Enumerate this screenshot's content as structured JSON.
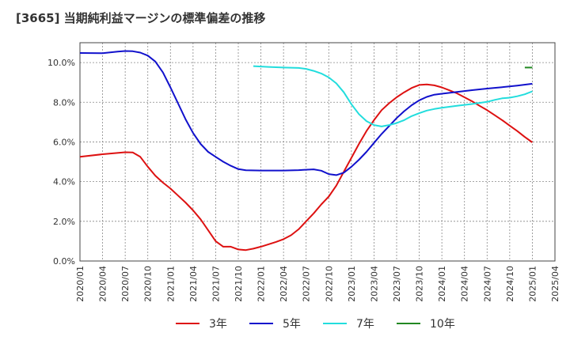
{
  "chart_data": {
    "type": "line",
    "title": "[3665]  当期純利益マージンの標準偏差の推移",
    "xlabel": "",
    "ylabel": "",
    "ylim": [
      0,
      11
    ],
    "grid": true,
    "legend_position": "bottom",
    "x_ticks": [
      "2020/01",
      "2020/04",
      "2020/07",
      "2020/10",
      "2021/01",
      "2021/04",
      "2021/07",
      "2021/10",
      "2022/01",
      "2022/04",
      "2022/07",
      "2022/10",
      "2023/01",
      "2023/04",
      "2023/07",
      "2023/10",
      "2024/01",
      "2024/04",
      "2024/07",
      "2024/10",
      "2025/01",
      "2025/04"
    ],
    "y_ticks": [
      "0.0%",
      "2.0%",
      "4.0%",
      "6.0%",
      "8.0%",
      "10.0%"
    ],
    "series": [
      {
        "name": "3年",
        "color": "#dd1111",
        "points": [
          [
            "2020/01",
            5.25
          ],
          [
            "2020/04",
            5.38
          ],
          [
            "2020/07",
            5.48
          ],
          [
            "2020/08",
            5.47
          ],
          [
            "2020/09",
            5.25
          ],
          [
            "2020/10",
            4.75
          ],
          [
            "2020/11",
            4.3
          ],
          [
            "2020/12",
            3.95
          ],
          [
            "2021/01",
            3.65
          ],
          [
            "2021/02",
            3.3
          ],
          [
            "2021/03",
            2.95
          ],
          [
            "2021/04",
            2.55
          ],
          [
            "2021/05",
            2.1
          ],
          [
            "2021/06",
            1.55
          ],
          [
            "2021/07",
            1.0
          ],
          [
            "2021/08",
            0.72
          ],
          [
            "2021/09",
            0.72
          ],
          [
            "2021/10",
            0.58
          ],
          [
            "2021/11",
            0.55
          ],
          [
            "2021/12",
            0.62
          ],
          [
            "2022/01",
            0.72
          ],
          [
            "2022/02",
            0.84
          ],
          [
            "2022/03",
            0.96
          ],
          [
            "2022/04",
            1.1
          ],
          [
            "2022/05",
            1.3
          ],
          [
            "2022/06",
            1.6
          ],
          [
            "2022/07",
            2.0
          ],
          [
            "2022/08",
            2.4
          ],
          [
            "2022/09",
            2.85
          ],
          [
            "2022/10",
            3.25
          ],
          [
            "2022/11",
            3.8
          ],
          [
            "2022/12",
            4.5
          ],
          [
            "2023/01",
            5.2
          ],
          [
            "2023/02",
            5.9
          ],
          [
            "2023/03",
            6.55
          ],
          [
            "2023/04",
            7.1
          ],
          [
            "2023/05",
            7.6
          ],
          [
            "2023/06",
            7.95
          ],
          [
            "2023/07",
            8.25
          ],
          [
            "2023/08",
            8.5
          ],
          [
            "2023/09",
            8.72
          ],
          [
            "2023/10",
            8.87
          ],
          [
            "2023/11",
            8.9
          ],
          [
            "2023/12",
            8.85
          ],
          [
            "2024/01",
            8.75
          ],
          [
            "2024/02",
            8.6
          ],
          [
            "2024/03",
            8.45
          ],
          [
            "2024/04",
            8.25
          ],
          [
            "2024/05",
            8.05
          ],
          [
            "2024/06",
            7.82
          ],
          [
            "2024/07",
            7.6
          ],
          [
            "2024/08",
            7.35
          ],
          [
            "2024/09",
            7.1
          ],
          [
            "2024/10",
            6.82
          ],
          [
            "2024/11",
            6.55
          ],
          [
            "2024/12",
            6.25
          ],
          [
            "2025/01",
            5.98
          ]
        ]
      },
      {
        "name": "5年",
        "color": "#1111cc",
        "points": [
          [
            "2020/01",
            10.48
          ],
          [
            "2020/04",
            10.47
          ],
          [
            "2020/06",
            10.55
          ],
          [
            "2020/07",
            10.58
          ],
          [
            "2020/08",
            10.57
          ],
          [
            "2020/09",
            10.5
          ],
          [
            "2020/10",
            10.35
          ],
          [
            "2020/11",
            10.05
          ],
          [
            "2020/12",
            9.5
          ],
          [
            "2021/01",
            8.75
          ],
          [
            "2021/02",
            7.95
          ],
          [
            "2021/03",
            7.15
          ],
          [
            "2021/04",
            6.45
          ],
          [
            "2021/05",
            5.9
          ],
          [
            "2021/06",
            5.5
          ],
          [
            "2021/07",
            5.25
          ],
          [
            "2021/08",
            5.0
          ],
          [
            "2021/09",
            4.8
          ],
          [
            "2021/10",
            4.63
          ],
          [
            "2021/11",
            4.57
          ],
          [
            "2022/01",
            4.56
          ],
          [
            "2022/04",
            4.56
          ],
          [
            "2022/06",
            4.58
          ],
          [
            "2022/08",
            4.62
          ],
          [
            "2022/09",
            4.55
          ],
          [
            "2022/10",
            4.38
          ],
          [
            "2022/11",
            4.33
          ],
          [
            "2022/12",
            4.45
          ],
          [
            "2023/01",
            4.75
          ],
          [
            "2023/02",
            5.1
          ],
          [
            "2023/03",
            5.5
          ],
          [
            "2023/04",
            5.95
          ],
          [
            "2023/05",
            6.4
          ],
          [
            "2023/06",
            6.8
          ],
          [
            "2023/07",
            7.2
          ],
          [
            "2023/08",
            7.55
          ],
          [
            "2023/09",
            7.85
          ],
          [
            "2023/10",
            8.1
          ],
          [
            "2023/11",
            8.27
          ],
          [
            "2023/12",
            8.38
          ],
          [
            "2024/01",
            8.43
          ],
          [
            "2024/03",
            8.52
          ],
          [
            "2024/05",
            8.61
          ],
          [
            "2024/07",
            8.69
          ],
          [
            "2024/09",
            8.76
          ],
          [
            "2024/11",
            8.84
          ],
          [
            "2025/01",
            8.93
          ]
        ]
      },
      {
        "name": "7年",
        "color": "#22dddd",
        "points": [
          [
            "2021/12",
            9.82
          ],
          [
            "2022/02",
            9.78
          ],
          [
            "2022/04",
            9.75
          ],
          [
            "2022/06",
            9.73
          ],
          [
            "2022/07",
            9.68
          ],
          [
            "2022/08",
            9.58
          ],
          [
            "2022/09",
            9.45
          ],
          [
            "2022/10",
            9.25
          ],
          [
            "2022/11",
            8.95
          ],
          [
            "2022/12",
            8.5
          ],
          [
            "2023/01",
            7.9
          ],
          [
            "2023/02",
            7.4
          ],
          [
            "2023/03",
            7.05
          ],
          [
            "2023/04",
            6.85
          ],
          [
            "2023/05",
            6.78
          ],
          [
            "2023/06",
            6.85
          ],
          [
            "2023/07",
            6.95
          ],
          [
            "2023/08",
            7.1
          ],
          [
            "2023/09",
            7.3
          ],
          [
            "2023/10",
            7.45
          ],
          [
            "2023/11",
            7.58
          ],
          [
            "2023/12",
            7.66
          ],
          [
            "2024/01",
            7.72
          ],
          [
            "2024/03",
            7.82
          ],
          [
            "2024/05",
            7.91
          ],
          [
            "2024/07",
            8.02
          ],
          [
            "2024/08",
            8.12
          ],
          [
            "2024/09",
            8.2
          ],
          [
            "2024/10",
            8.23
          ],
          [
            "2024/11",
            8.3
          ],
          [
            "2024/12",
            8.4
          ],
          [
            "2025/01",
            8.55
          ]
        ]
      },
      {
        "name": "10年",
        "color": "#228822",
        "points": [
          [
            "2024/12",
            9.75
          ],
          [
            "2025/01",
            9.75
          ]
        ]
      }
    ]
  }
}
